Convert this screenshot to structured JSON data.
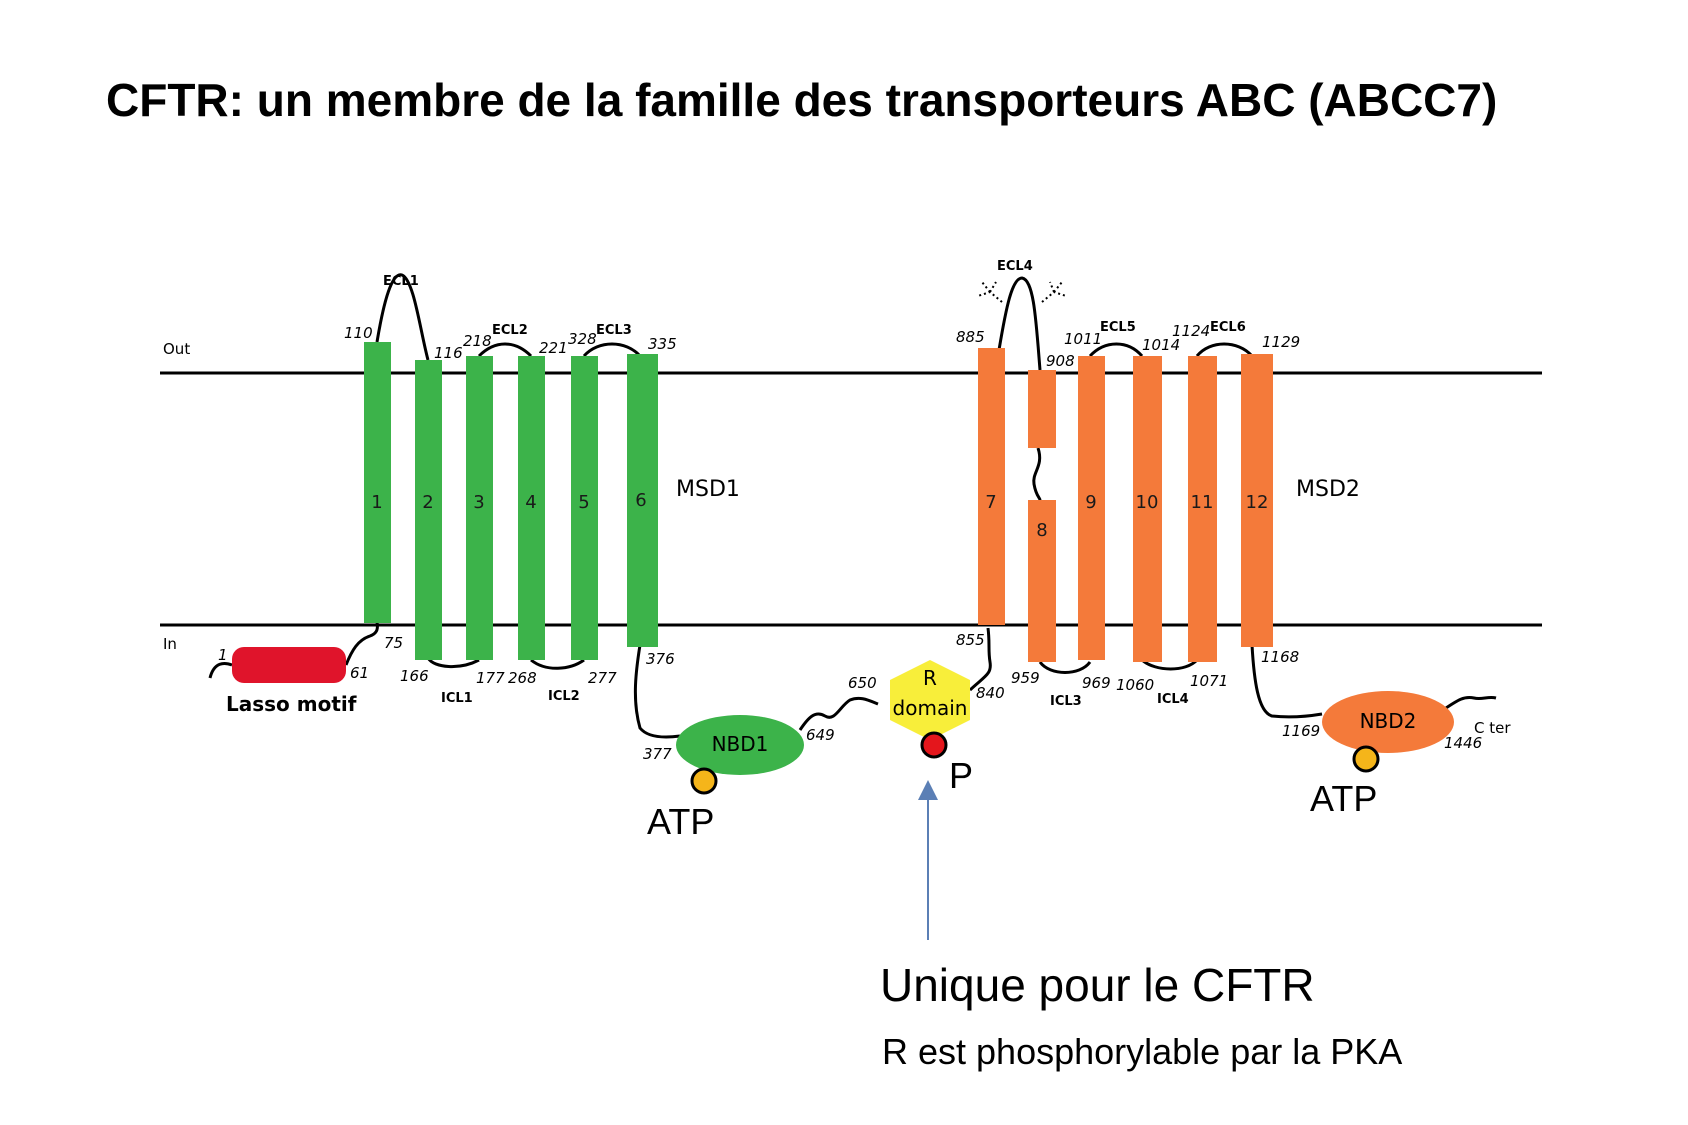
{
  "title": "CFTR: un membre de la famille des transporteurs ABC (ABCC7)",
  "membrane": {
    "out_label": "Out",
    "in_label": "In"
  },
  "colors": {
    "msd1": "#3cb34a",
    "msd2": "#f47a3a",
    "lasso": "#e0142b",
    "r_domain": "#f8ee3a",
    "phospho": "#e4161c",
    "atp": "#f5b51a",
    "arrow": "#5b7fb5"
  },
  "msd1": {
    "label": "MSD1",
    "helices": [
      "1",
      "2",
      "3",
      "4",
      "5",
      "6"
    ]
  },
  "msd2": {
    "label": "MSD2",
    "helices": [
      "7",
      "8",
      "9",
      "10",
      "11",
      "12"
    ]
  },
  "extracellular_loops": [
    "ECL1",
    "ECL2",
    "ECL3",
    "ECL4",
    "ECL5",
    "ECL6"
  ],
  "intracellular_loops": [
    "ICL1",
    "ICL2",
    "ICL3",
    "ICL4"
  ],
  "residues": {
    "r1": "1",
    "r61": "61",
    "r75": "75",
    "r110": "110",
    "r116": "116",
    "r166": "166",
    "r177": "177",
    "r218": "218",
    "r221": "221",
    "r268": "268",
    "r277": "277",
    "r328": "328",
    "r335": "335",
    "r376": "376",
    "r377": "377",
    "r649": "649",
    "r650": "650",
    "r840": "840",
    "r855": "855",
    "r885": "885",
    "r908": "908",
    "r959": "959",
    "r969": "969",
    "r1011": "1011",
    "r1014": "1014",
    "r1060": "1060",
    "r1071": "1071",
    "r1124": "1124",
    "r1129": "1129",
    "r1168": "1168",
    "r1169": "1169",
    "r1446": "1446"
  },
  "lasso_label": "Lasso motif",
  "nbd1": {
    "label": "NBD1",
    "atp": "ATP"
  },
  "nbd2": {
    "label": "NBD2",
    "atp": "ATP"
  },
  "r_domain": {
    "line1": "R",
    "line2": "domain",
    "phospho_label": "P"
  },
  "c_ter": "C ter",
  "note": {
    "line1": "Unique pour le CFTR",
    "line2": "R est phosphorylable par la PKA"
  }
}
